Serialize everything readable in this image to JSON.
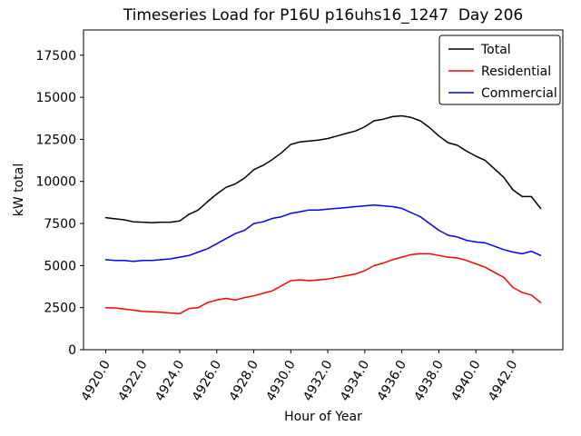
{
  "chart_data": {
    "type": "line",
    "title": "Timeseries Load for P16U p16uhs16_1247  Day 206",
    "xlabel": "Hour of Year",
    "ylabel": "kW total",
    "xlim": [
      4918.8,
      4944.7
    ],
    "ylim": [
      0,
      19000
    ],
    "grid": false,
    "legend_position": "upper right",
    "xticks": [
      4920,
      4922,
      4924,
      4926,
      4928,
      4930,
      4932,
      4934,
      4936,
      4938,
      4940,
      4942
    ],
    "xtick_labels": [
      "4920.0",
      "4922.0",
      "4924.0",
      "4926.0",
      "4928.0",
      "4930.0",
      "4932.0",
      "4934.0",
      "4936.0",
      "4938.0",
      "4940.0",
      "4942.0"
    ],
    "yticks": [
      0,
      2500,
      5000,
      7500,
      10000,
      12500,
      15000,
      17500
    ],
    "ytick_labels": [
      "0",
      "2500",
      "5000",
      "7500",
      "10000",
      "12500",
      "15000",
      "17500"
    ],
    "x": [
      4920.0,
      4920.5,
      4921.0,
      4921.5,
      4922.0,
      4922.5,
      4923.0,
      4923.5,
      4924.0,
      4924.5,
      4925.0,
      4925.5,
      4926.0,
      4926.5,
      4927.0,
      4927.5,
      4928.0,
      4928.5,
      4929.0,
      4929.5,
      4930.0,
      4930.5,
      4931.0,
      4931.5,
      4932.0,
      4932.5,
      4933.0,
      4933.5,
      4934.0,
      4934.5,
      4935.0,
      4935.5,
      4936.0,
      4936.5,
      4937.0,
      4937.5,
      4938.0,
      4938.5,
      4939.0,
      4939.5,
      4940.0,
      4940.5,
      4941.0,
      4941.5,
      4942.0,
      4942.5,
      4943.0,
      4943.5
    ],
    "series": [
      {
        "name": "Total",
        "color": "#000000",
        "values": [
          7850,
          7780,
          7720,
          7600,
          7580,
          7550,
          7580,
          7580,
          7650,
          8050,
          8300,
          8800,
          9250,
          9650,
          9850,
          10200,
          10700,
          10950,
          11300,
          11700,
          12200,
          12350,
          12400,
          12450,
          12550,
          12700,
          12850,
          13000,
          13250,
          13600,
          13700,
          13850,
          13900,
          13800,
          13600,
          13200,
          12700,
          12300,
          12150,
          11800,
          11500,
          11250,
          10750,
          10250,
          9500,
          9100,
          9100,
          8400
        ]
      },
      {
        "name": "Residential",
        "color": "#ff0000",
        "values": [
          2500,
          2480,
          2420,
          2350,
          2280,
          2250,
          2230,
          2180,
          2150,
          2450,
          2500,
          2800,
          2950,
          3050,
          2950,
          3100,
          3200,
          3350,
          3500,
          3800,
          4100,
          4150,
          4100,
          4150,
          4200,
          4300,
          4400,
          4500,
          4700,
          5000,
          5150,
          5350,
          5500,
          5650,
          5700,
          5700,
          5600,
          5500,
          5450,
          5300,
          5100,
          4900,
          4600,
          4300,
          3700,
          3400,
          3250,
          2800
        ]
      },
      {
        "name": "Commercial",
        "color": "#0000ff",
        "values": [
          5350,
          5300,
          5300,
          5250,
          5300,
          5300,
          5350,
          5400,
          5500,
          5600,
          5800,
          6000,
          6300,
          6600,
          6900,
          7100,
          7500,
          7600,
          7800,
          7900,
          8100,
          8200,
          8300,
          8300,
          8350,
          8400,
          8450,
          8500,
          8550,
          8600,
          8550,
          8500,
          8400,
          8150,
          7900,
          7500,
          7100,
          6800,
          6700,
          6500,
          6400,
          6350,
          6150,
          5950,
          5800,
          5700,
          5850,
          5600
        ]
      }
    ]
  }
}
